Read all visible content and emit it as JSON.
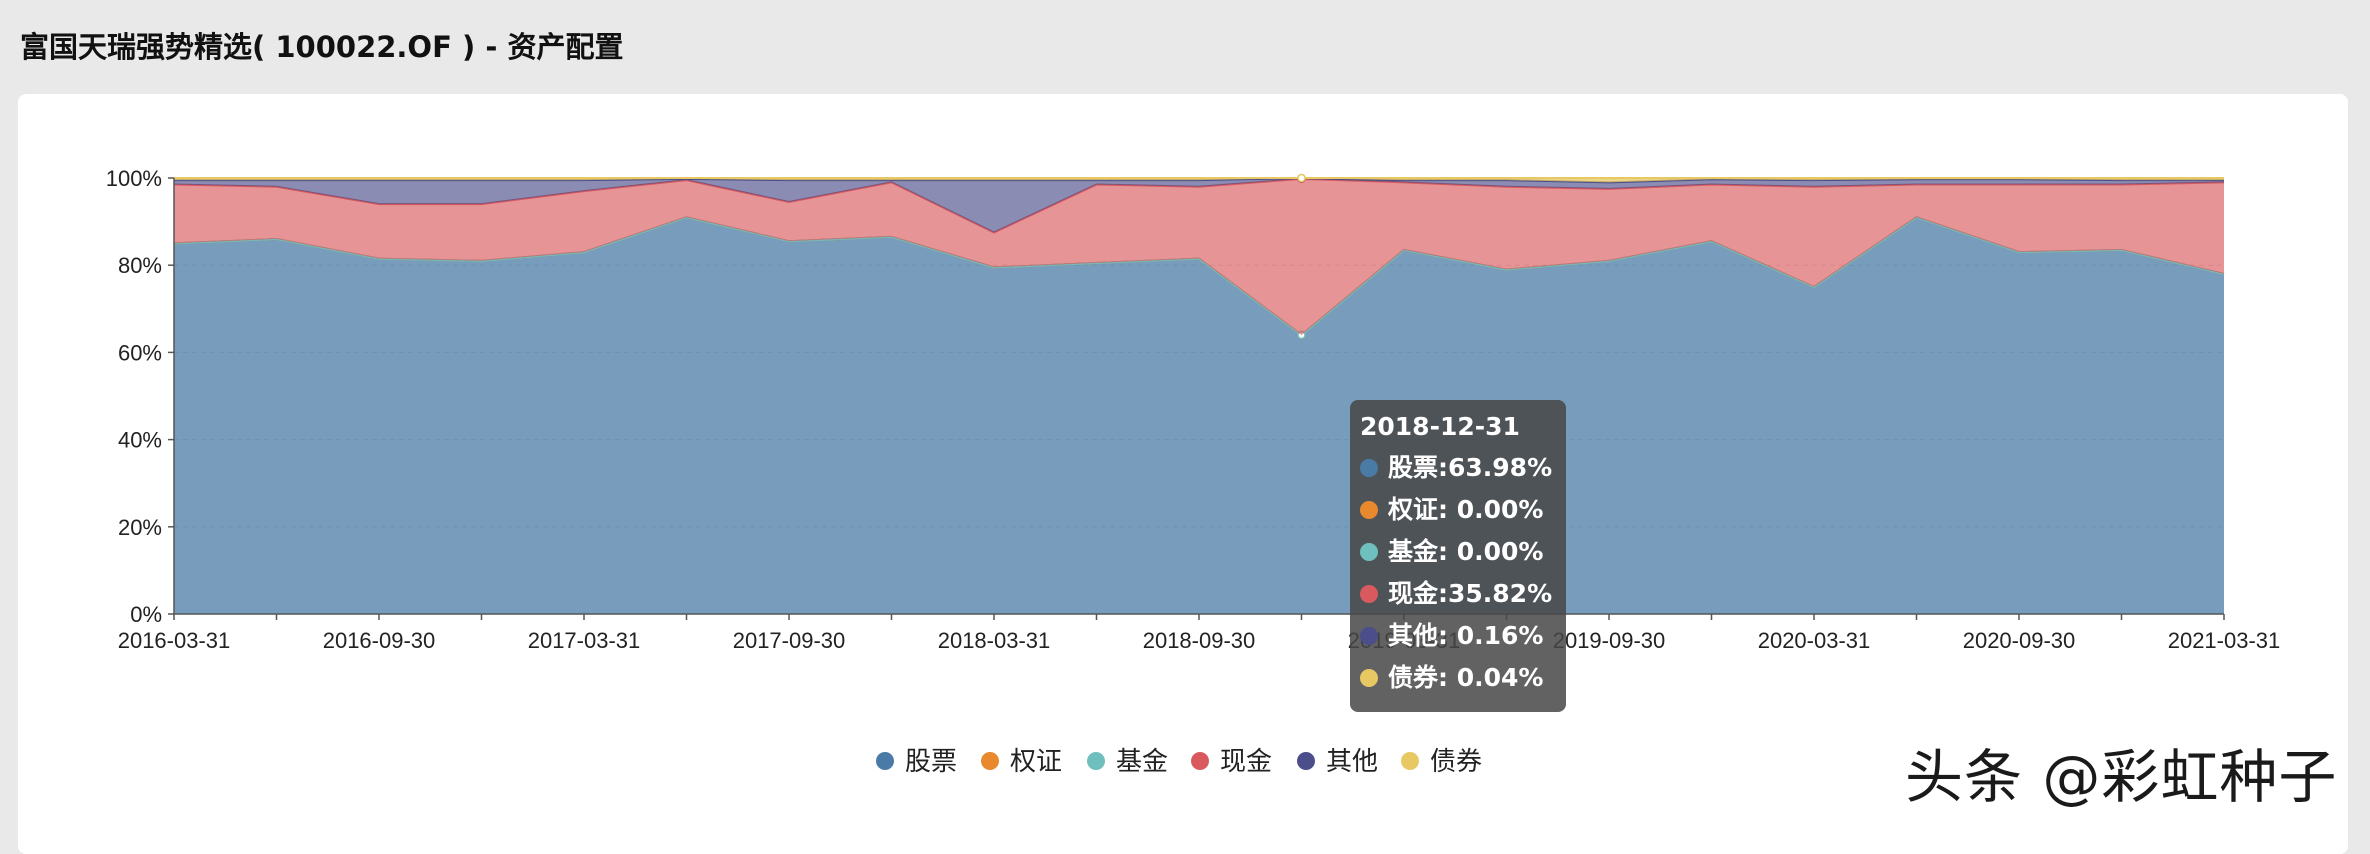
{
  "page": {
    "title": "富国天瑞强势精选( 100022.OF ) - 资产配置",
    "watermark": "头条 @彩虹种子"
  },
  "colors": {
    "stock": "#4a7ba6",
    "warrant": "#e8892e",
    "fund": "#6fbfbe",
    "cash": "#d95a5e",
    "other": "#4b4e8a",
    "bond": "#e8c862"
  },
  "chart_data": {
    "type": "area",
    "stacked": true,
    "title": "",
    "ylim": [
      0,
      100
    ],
    "y_ticks": [
      "0%",
      "20%",
      "40%",
      "60%",
      "80%",
      "100%"
    ],
    "x_labels_shown": [
      "2016-03-31",
      "2016-09-30",
      "2017-03-31",
      "2017-09-30",
      "2018-03-31",
      "2018-09-30",
      "2019-03-31",
      "2019-09-30",
      "2020-03-31",
      "2020-09-30",
      "2021-03-31"
    ],
    "x": [
      "2016-03-31",
      "2016-06-30",
      "2016-09-30",
      "2016-12-31",
      "2017-03-31",
      "2017-06-30",
      "2017-09-30",
      "2017-12-31",
      "2018-03-31",
      "2018-06-30",
      "2018-09-30",
      "2018-12-31",
      "2019-03-31",
      "2019-06-30",
      "2019-09-30",
      "2019-12-31",
      "2020-03-31",
      "2020-06-30",
      "2020-09-30",
      "2020-12-31",
      "2021-03-31"
    ],
    "series": [
      {
        "name": "股票",
        "key": "stock",
        "values": [
          85,
          86,
          81.5,
          81,
          83,
          91,
          85.5,
          86.5,
          79.5,
          80.5,
          81.5,
          63.98,
          83.5,
          79,
          81,
          85.5,
          75,
          91,
          83,
          83.5,
          78
        ]
      },
      {
        "name": "权证",
        "key": "warrant",
        "values": [
          0,
          0,
          0,
          0,
          0,
          0,
          0,
          0,
          0,
          0,
          0,
          0,
          0,
          0,
          0,
          0,
          0,
          0,
          0,
          0,
          0
        ]
      },
      {
        "name": "基金",
        "key": "fund",
        "values": [
          0,
          0,
          0,
          0,
          0,
          0,
          0,
          0,
          0,
          0,
          0,
          0,
          0,
          0,
          0,
          0,
          0,
          0,
          0,
          0,
          0
        ]
      },
      {
        "name": "现金",
        "key": "cash",
        "values": [
          13.5,
          12,
          12.5,
          13,
          14,
          8.5,
          9,
          12.5,
          8,
          18,
          16.5,
          35.82,
          15.5,
          19,
          16.5,
          13,
          23,
          7.5,
          15.5,
          15,
          21
        ]
      },
      {
        "name": "其他",
        "key": "other",
        "values": [
          1,
          1.5,
          5.5,
          5.5,
          2.5,
          0.3,
          5,
          0.5,
          12,
          1,
          1.5,
          0.16,
          0.5,
          1.5,
          1.5,
          1.2,
          1.5,
          1.2,
          1.2,
          1,
          0.5
        ]
      },
      {
        "name": "债券",
        "key": "bond",
        "values": [
          0.5,
          0.5,
          0.5,
          0.5,
          0.5,
          0.2,
          0.5,
          0.5,
          0.5,
          0.5,
          0.5,
          0.04,
          0.5,
          0.5,
          1,
          0.3,
          0.5,
          0.3,
          0.3,
          0.5,
          0.5
        ]
      }
    ],
    "legend": [
      "股票",
      "权证",
      "基金",
      "现金",
      "其他",
      "债券"
    ],
    "legend_position": "bottom-center",
    "highlight_index": 11
  },
  "tooltip": {
    "date": "2018-12-31",
    "rows": [
      {
        "text": "股票:63.98%",
        "color_key": "stock"
      },
      {
        "text": "权证:  0.00%",
        "color_key": "warrant"
      },
      {
        "text": "基金:  0.00%",
        "color_key": "fund"
      },
      {
        "text": "现金:35.82%",
        "color_key": "cash"
      },
      {
        "text": "其他:  0.16%",
        "color_key": "other"
      },
      {
        "text": "债券:  0.04%",
        "color_key": "bond"
      }
    ]
  }
}
